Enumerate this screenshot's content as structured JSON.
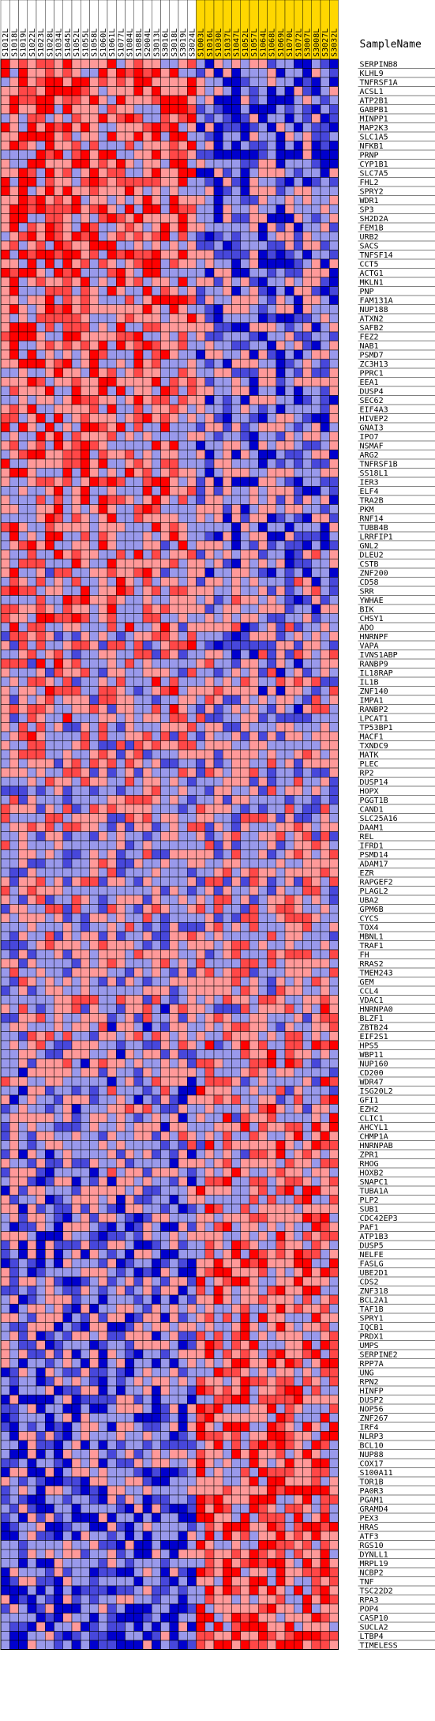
{
  "chart_data": {
    "type": "heatmap",
    "title": "",
    "xlabel": "",
    "ylabel": "",
    "header_label": "SampleName",
    "columns": [
      "S1012L",
      "S1018L",
      "S1019L",
      "S1022L",
      "S1023L",
      "S1028L",
      "S1034L",
      "S1045L",
      "S1052L",
      "S1055L",
      "S1058L",
      "S1060L",
      "S1061L",
      "S1077L",
      "S1084L",
      "S1088L",
      "S2004L",
      "S3013L",
      "S3016L",
      "S3018L",
      "S3019L",
      "S3024L",
      "S1003L",
      "S1016L",
      "S1030L",
      "S1037L",
      "S1047L",
      "S1052L",
      "S1057L",
      "S1064L",
      "S1068L",
      "S1069L",
      "S1070L",
      "S1072L",
      "S3007L",
      "S3008L",
      "S3027L",
      "S3032L"
    ],
    "column_groups": [
      "a",
      "a",
      "a",
      "a",
      "a",
      "a",
      "a",
      "a",
      "a",
      "a",
      "a",
      "a",
      "a",
      "a",
      "a",
      "a",
      "a",
      "a",
      "a",
      "a",
      "a",
      "a",
      "b",
      "b",
      "b",
      "b",
      "b",
      "b",
      "b",
      "b",
      "b",
      "b",
      "b",
      "b",
      "b",
      "b",
      "b",
      "b"
    ],
    "rows": [
      "SERPINB8",
      "KLHL9",
      "TNFRSF1A",
      "ACSL1",
      "ATP2B1",
      "GABPB1",
      "MINPP1",
      "MAP2K3",
      "SLC1A5",
      "NFKB1",
      "PRNP",
      "CYP1B1",
      "SLC7A5",
      "FHL2",
      "SPRY2",
      "WDR1",
      "SP3",
      "SH2D2A",
      "FEM1B",
      "URB2",
      "SACS",
      "TNFSF14",
      "CCT5",
      "ACTG1",
      "MKLN1",
      "PNP",
      "FAM131A",
      "NUP188",
      "ATXN2",
      "SAFB2",
      "FEZ2",
      "NAB1",
      "PSMD7",
      "ZC3H13",
      "PPRC1",
      "EEA1",
      "DUSP4",
      "SEC62",
      "EIF4A3",
      "HIVEP2",
      "GNAI3",
      "IPO7",
      "NSMAF",
      "ARG2",
      "TNFRSF1B",
      "SS18L1",
      "IER3",
      "ELF4",
      "TRA2B",
      "PKM",
      "RNF14",
      "TUBB4B",
      "LRRFIP1",
      "GNL2",
      "DLEU2",
      "CSTB",
      "ZNF200",
      "CD58",
      "SRR",
      "YWHAE",
      "BIK",
      "CHSY1",
      "ADO",
      "HNRNPF",
      "VAPA",
      "IVNS1ABP",
      "RANBP9",
      "IL18RAP",
      "IL1B",
      "ZNF140",
      "IMPA1",
      "RANBP2",
      "LPCAT1",
      "TP53BP1",
      "MACF1",
      "TXNDC9",
      "MATK",
      "PLEC",
      "RP2",
      "DUSP14",
      "HOPX",
      "PGGT1B",
      "CAND1",
      "SLC25A16",
      "DAAM1",
      "REL",
      "IFRD1",
      "PSMD14",
      "ADAM17",
      "EZR",
      "RAPGEF2",
      "PLAGL2",
      "UBA2",
      "GPM6B",
      "CYCS",
      "TOX4",
      "MBNL1",
      "TRAF1",
      "FH",
      "RRAS2",
      "TMEM243",
      "GEM",
      "CCL4",
      "VDAC1",
      "HNRNPA0",
      "BLZF1",
      "ZBTB24",
      "EIF2S1",
      "HPS5",
      "WBP11",
      "NUP160",
      "CD200",
      "WDR47",
      "ISG20L2",
      "GFI1",
      "EZH2",
      "CLIC1",
      "AHCYL1",
      "CHMP1A",
      "HNRNPAB",
      "ZPR1",
      "RHOG",
      "HOXB2",
      "SNAPC1",
      "TUBA1A",
      "PLP2",
      "SUB1",
      "CDC42EP3",
      "PAF1",
      "ATP1B3",
      "DUSP5",
      "NELFE",
      "FASLG",
      "UBE2D1",
      "CDS2",
      "ZNF318",
      "BCL2A1",
      "TAF1B",
      "SPRY1",
      "IQCB1",
      "PRDX1",
      "UMPS",
      "SERPINE2",
      "RPP7A",
      "UNG",
      "RPN2",
      "HINFP",
      "DUSP2",
      "NOP56",
      "ZNF267",
      "IRF4",
      "NLRP3",
      "BCL10",
      "NUP88",
      "COX17",
      "S100A11",
      "TOR1B",
      "PA0R3",
      "PGAM1",
      "GRAMD4",
      "PEX3",
      "HRAS",
      "ATF3",
      "RGS10",
      "DYNLL1",
      "MRPL19",
      "NCBP2",
      "TNF",
      "TSC22D2",
      "RPA3",
      "POP4",
      "CASP10",
      "SUCLA2",
      "LTBP4",
      "TIMELESS"
    ],
    "value_range": [
      -1,
      1
    ],
    "cells_note": "",
    "colors": {
      "high": "#ff0000",
      "mid": "#ffffff",
      "low": "#0000cd",
      "group_a_header": "#ffffff",
      "group_b_header": "#ffd700",
      "grid": "#000000"
    }
  }
}
